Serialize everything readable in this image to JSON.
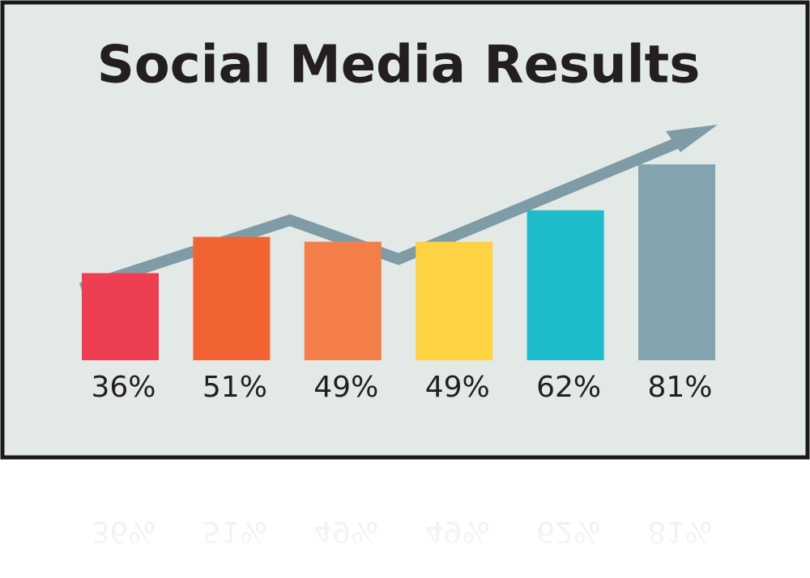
{
  "chart_data": {
    "type": "bar",
    "title": "Social Media Results",
    "values": [
      36,
      51,
      49,
      49,
      62,
      81
    ],
    "value_labels": [
      "36%",
      "51%",
      "49%",
      "49%",
      "62%",
      "81%"
    ],
    "colors": [
      "#ee3e51",
      "#f26333",
      "#f37e4a",
      "#fdd344",
      "#1ebbca",
      "#83a3ae"
    ]
  }
}
